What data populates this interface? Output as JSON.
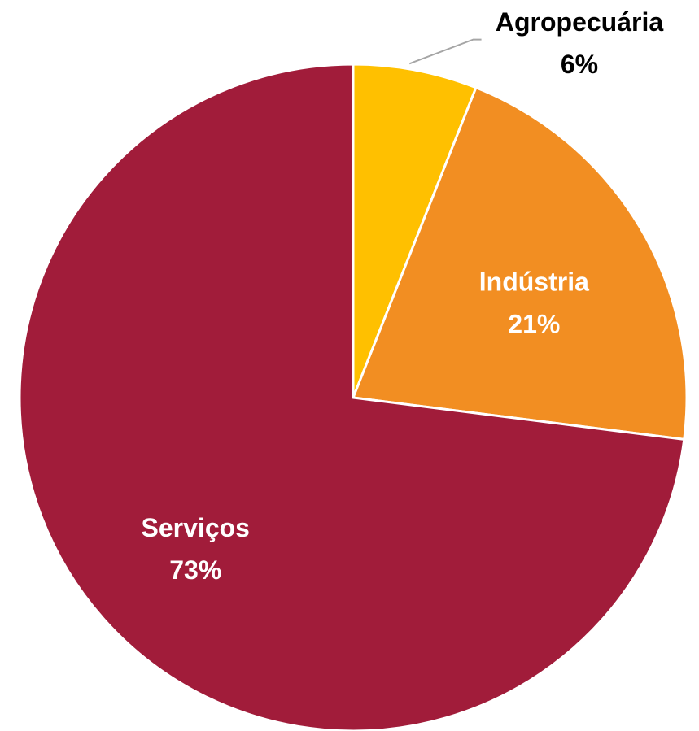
{
  "chart_data": {
    "type": "pie",
    "title": "",
    "start_angle_deg": 0,
    "direction": "clockwise",
    "slices": [
      {
        "label": "Agropecuária",
        "value": 6,
        "percent_label": "6%",
        "color": "#FFC000",
        "label_color": "#000000",
        "label_outside": true
      },
      {
        "label": "Indústria",
        "value": 21,
        "percent_label": "21%",
        "color": "#F28E22",
        "label_color": "#FFFFFF",
        "label_outside": false
      },
      {
        "label": "Serviços",
        "value": 73,
        "percent_label": "73%",
        "color": "#A11C3A",
        "label_color": "#FFFFFF",
        "label_outside": false
      }
    ],
    "slice_border_color": "#FFFFFF",
    "leader_line_color": "#A6A6A6",
    "legend": "none"
  }
}
